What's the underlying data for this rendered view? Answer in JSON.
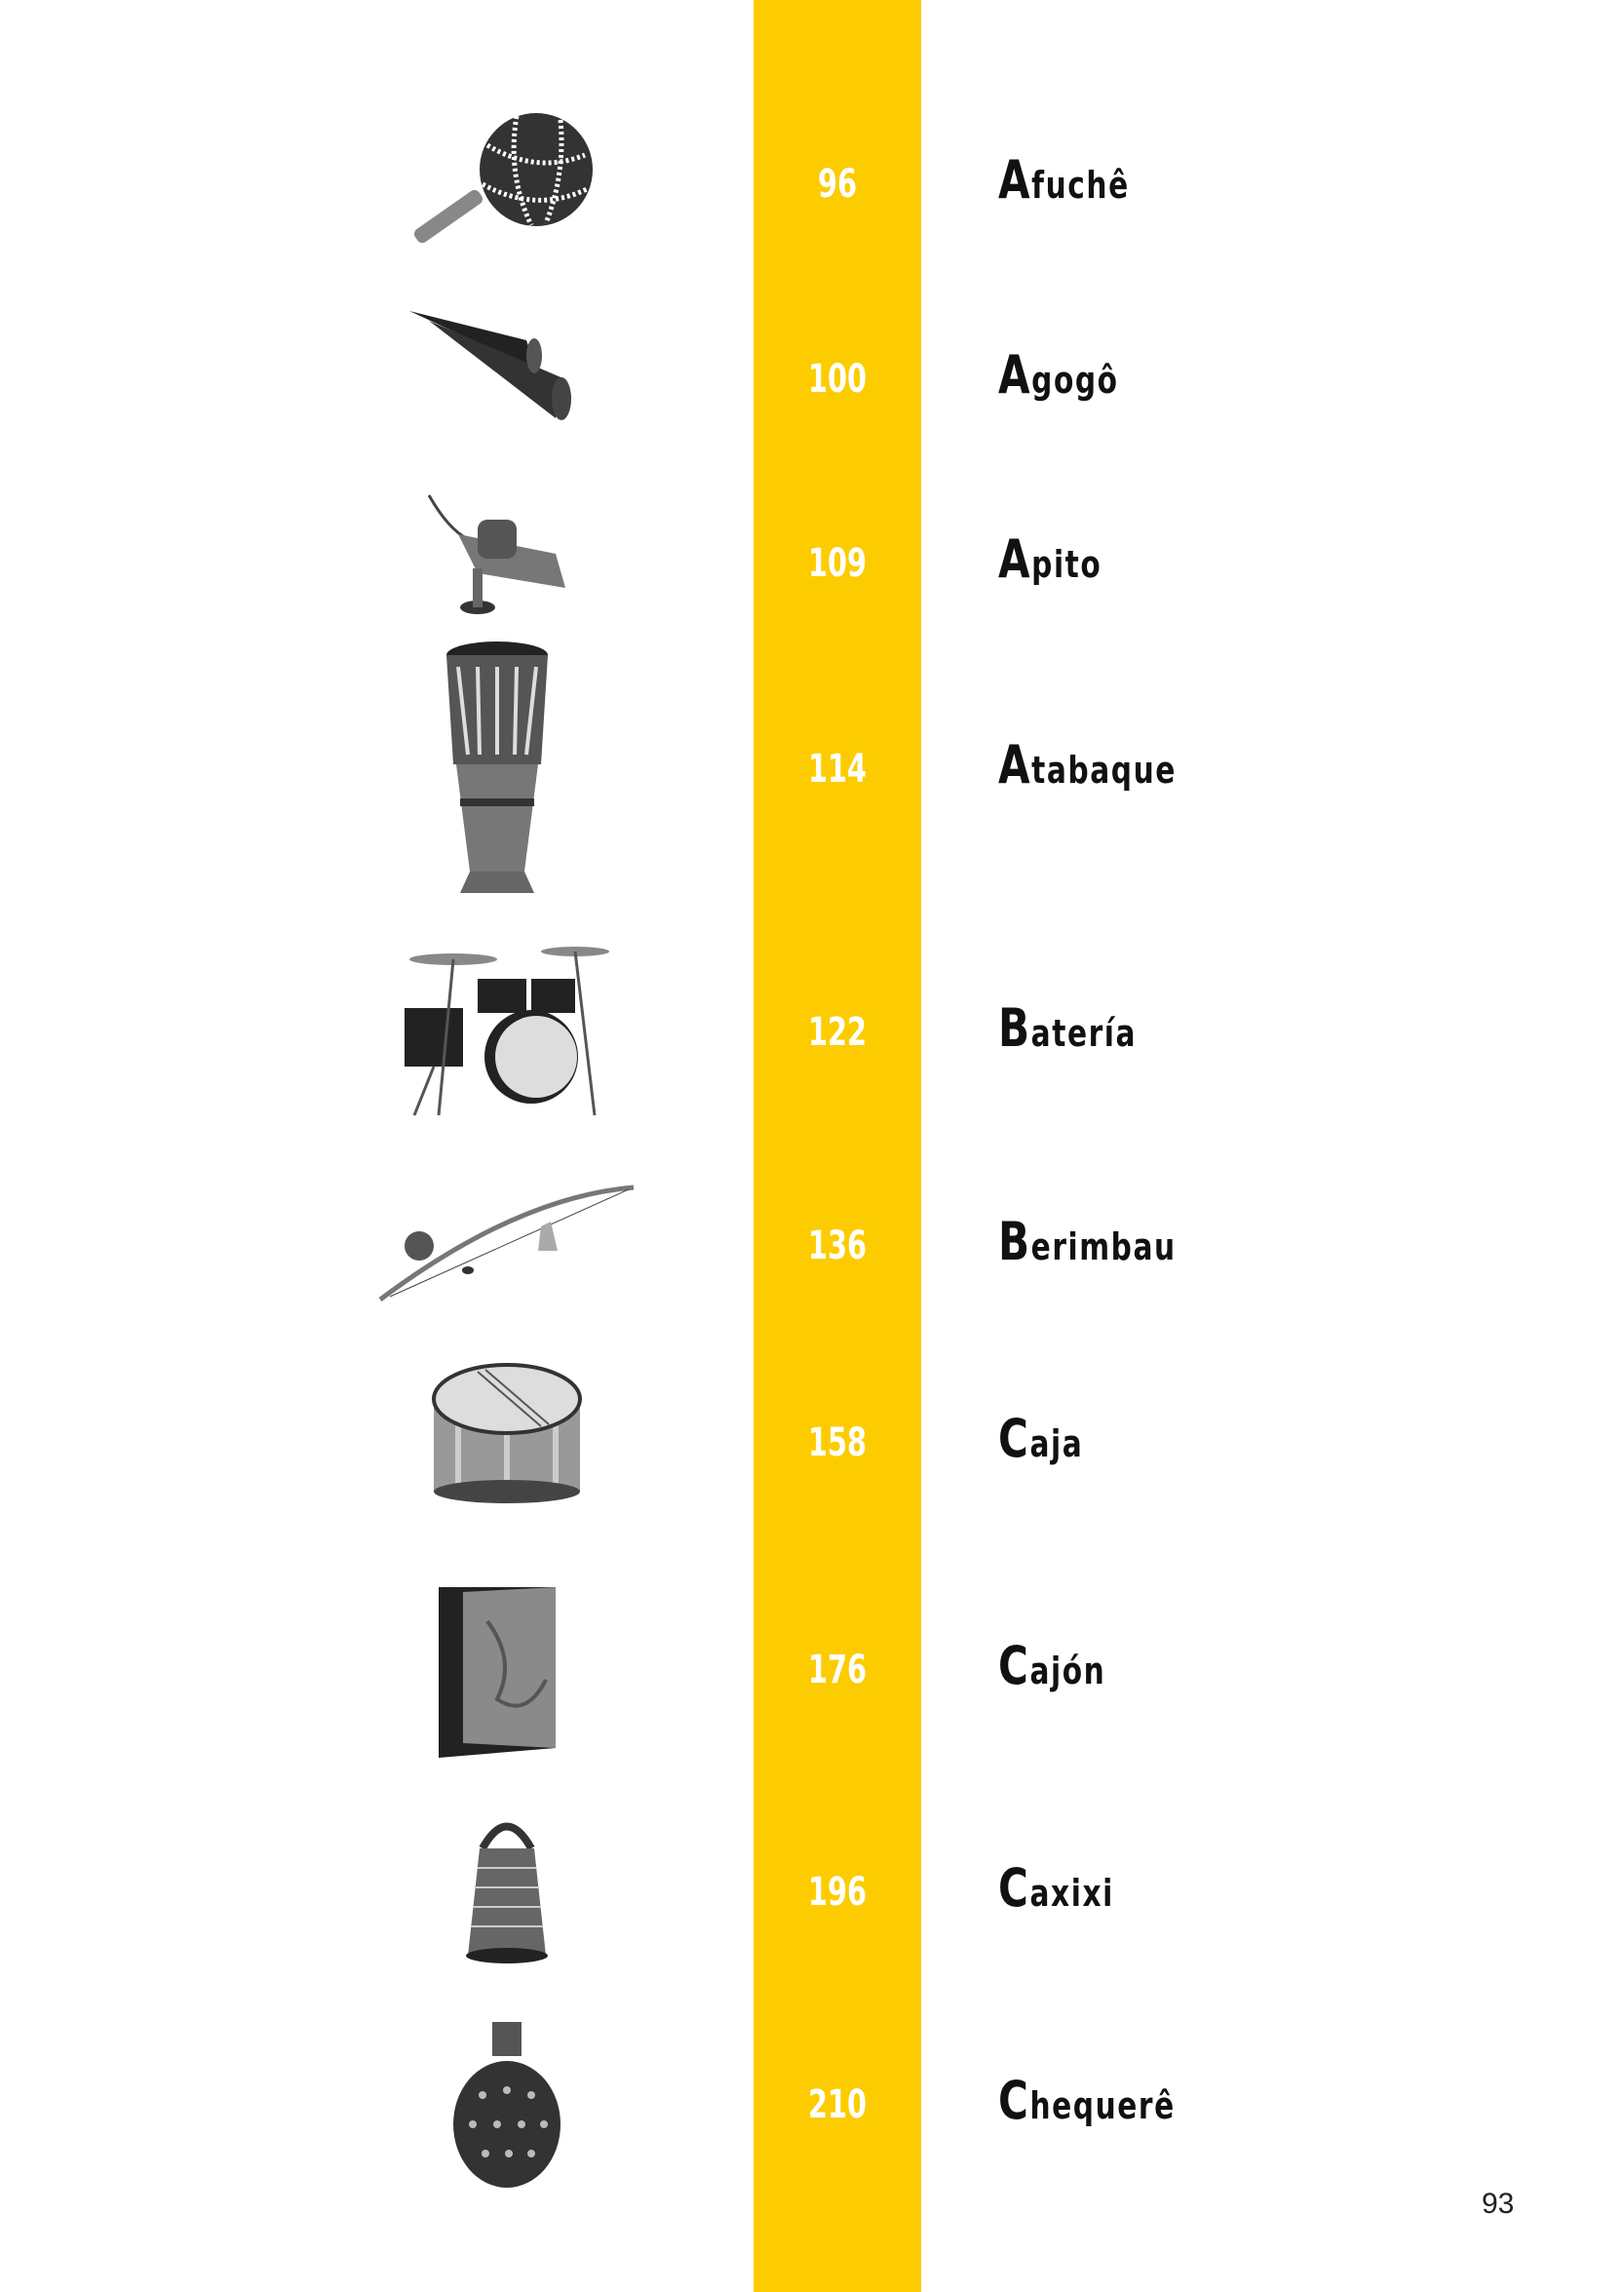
{
  "accent_color": "#fccc00",
  "entries": [
    {
      "page": "96",
      "name_initial": "A",
      "name_rest": "fuchê",
      "icon": "afuche-shaker-image"
    },
    {
      "page": "100",
      "name_initial": "A",
      "name_rest": "gogô",
      "icon": "agogo-bell-image"
    },
    {
      "page": "109",
      "name_initial": "A",
      "name_rest": "pito",
      "icon": "apito-whistle-image"
    },
    {
      "page": "114",
      "name_initial": "A",
      "name_rest": "tabaque",
      "icon": "atabaque-drum-image"
    },
    {
      "page": "122",
      "name_initial": "B",
      "name_rest": "atería",
      "icon": "drum-kit-image"
    },
    {
      "page": "136",
      "name_initial": "B",
      "name_rest": "erimbau",
      "icon": "berimbau-image"
    },
    {
      "page": "158",
      "name_initial": "C",
      "name_rest": "aja",
      "icon": "snare-drum-image"
    },
    {
      "page": "176",
      "name_initial": "C",
      "name_rest": "ajón",
      "icon": "cajon-image"
    },
    {
      "page": "196",
      "name_initial": "C",
      "name_rest": "axixi",
      "icon": "caxixi-image"
    },
    {
      "page": "210",
      "name_initial": "C",
      "name_rest": "hequerê",
      "icon": "chequere-image"
    }
  ],
  "page_number": "93"
}
